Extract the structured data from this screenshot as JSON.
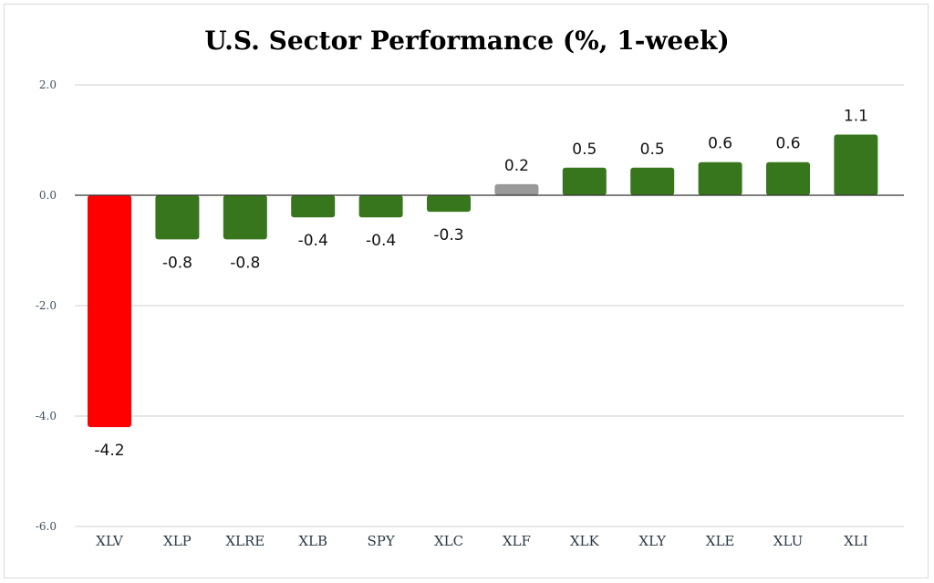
{
  "chart_data": {
    "type": "bar",
    "title": "U.S. Sector Performance (%, 1-week)",
    "categories": [
      "XLV",
      "XLP",
      "XLRE",
      "XLB",
      "SPY",
      "XLC",
      "XLF",
      "XLK",
      "XLY",
      "XLE",
      "XLU",
      "XLI"
    ],
    "values": [
      -4.2,
      -0.8,
      -0.8,
      -0.4,
      -0.4,
      -0.3,
      0.2,
      0.5,
      0.5,
      0.6,
      0.6,
      1.1
    ],
    "data_labels": [
      "-4.2",
      "-0.8",
      "-0.8",
      "-0.4",
      "-0.4",
      "-0.3",
      "0.2",
      "0.5",
      "0.5",
      "0.6",
      "0.6",
      "1.1"
    ],
    "bar_colors": [
      "#ff0000",
      "#38761d",
      "#38761d",
      "#38761d",
      "#38761d",
      "#38761d",
      "#999999",
      "#38761d",
      "#38761d",
      "#38761d",
      "#38761d",
      "#38761d"
    ],
    "yticks": [
      2.0,
      0.0,
      -2.0,
      -4.0,
      -6.0
    ],
    "ytick_labels": [
      "2.0",
      "0.0",
      "-2.0",
      "-4.0",
      "-6.0"
    ],
    "ylim": [
      -6,
      2
    ],
    "xlabel": "",
    "ylabel": "",
    "grid": true,
    "legend": "none"
  }
}
